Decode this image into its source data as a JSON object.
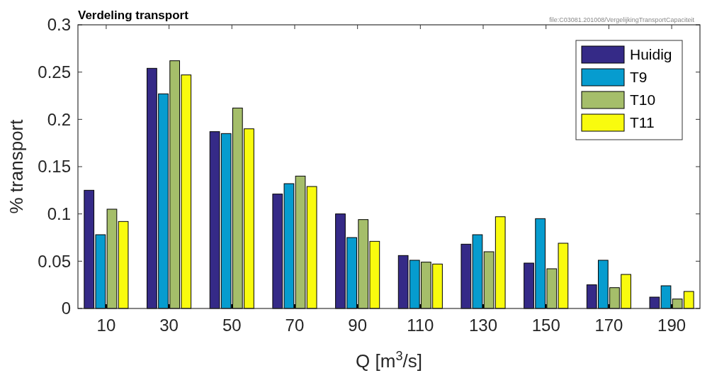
{
  "chart_data": {
    "type": "bar",
    "title": "Verdeling transport",
    "xlabel": "Q [m$^{3}$/s]",
    "ylabel": "% transport",
    "annotations": [
      "file:C03081.201008/VergelijkingTransportCapaciteit"
    ],
    "categories": [
      "10",
      "30",
      "50",
      "70",
      "90",
      "110",
      "130",
      "150",
      "170",
      "190"
    ],
    "series": [
      {
        "name": "Huidig",
        "color": "#352a87",
        "values": [
          0.125,
          0.254,
          0.187,
          0.121,
          0.1,
          0.056,
          0.068,
          0.048,
          0.025,
          0.012
        ]
      },
      {
        "name": "T9",
        "color": "#069ccf",
        "values": [
          0.078,
          0.227,
          0.185,
          0.132,
          0.075,
          0.051,
          0.078,
          0.095,
          0.051,
          0.024
        ]
      },
      {
        "name": "T10",
        "color": "#a5be6a",
        "values": [
          0.105,
          0.262,
          0.212,
          0.14,
          0.094,
          0.049,
          0.06,
          0.042,
          0.022,
          0.01
        ]
      },
      {
        "name": "T11",
        "color": "#f9fb0e",
        "values": [
          0.092,
          0.247,
          0.19,
          0.129,
          0.071,
          0.047,
          0.097,
          0.069,
          0.036,
          0.018
        ]
      }
    ],
    "ylim": [
      0,
      0.3
    ],
    "yticks": [
      0,
      0.05,
      0.1,
      0.15,
      0.2,
      0.25,
      0.3
    ],
    "grid": false,
    "legend": "top right"
  }
}
